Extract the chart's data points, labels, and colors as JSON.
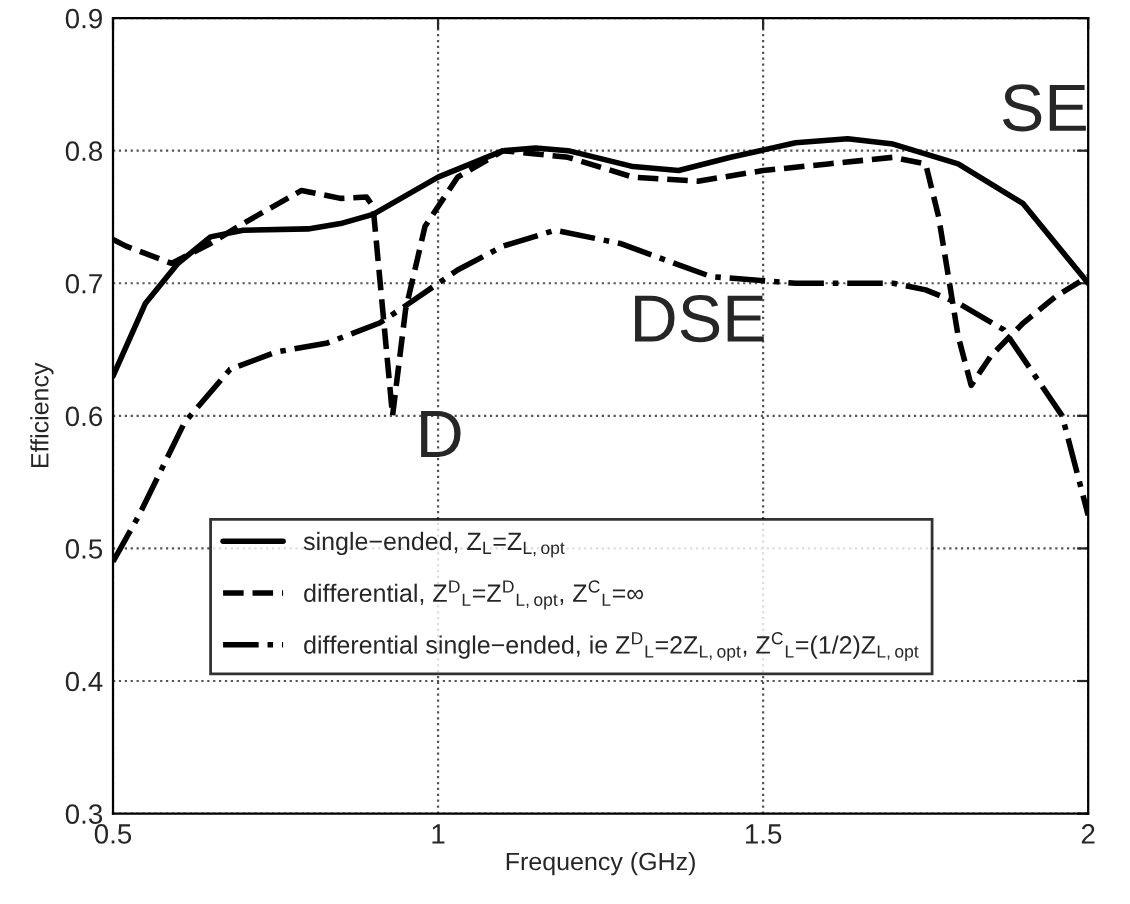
{
  "chart_data": {
    "type": "line",
    "xlabel": "Frequency (GHz)",
    "ylabel": "Efficiency",
    "xlim": [
      0.5,
      2
    ],
    "ylim": [
      0.3,
      0.9
    ],
    "xticks": [
      0.5,
      1,
      1.5,
      2
    ],
    "yticks": [
      0.3,
      0.4,
      0.5,
      0.6,
      0.7,
      0.8,
      0.9
    ],
    "grid": true,
    "legend": "bottom",
    "series": [
      {
        "name": "single−ended, Z$_{L}$=Z$_{L,opt}$",
        "color": "#000000",
        "line_style": "solid",
        "x": [
          0.5,
          0.55,
          0.6,
          0.65,
          0.7,
          0.8,
          0.85,
          0.9,
          1.0,
          1.05,
          1.1,
          1.15,
          1.2,
          1.3,
          1.37,
          1.45,
          1.55,
          1.63,
          1.7,
          1.8,
          1.9,
          2.0
        ],
        "values": [
          0.63,
          0.685,
          0.715,
          0.735,
          0.74,
          0.741,
          0.745,
          0.752,
          0.78,
          0.79,
          0.8,
          0.802,
          0.8,
          0.788,
          0.785,
          0.795,
          0.806,
          0.809,
          0.805,
          0.79,
          0.76,
          0.7
        ]
      },
      {
        "name": "differential, Z$^{D}$$_{L}$=Z$^{D}$$_{L,opt}$, Z$^{C}$$_{L}$=∞",
        "color": "#000000",
        "line_style": "dashed",
        "x": [
          0.5,
          0.52,
          0.59,
          0.65,
          0.7,
          0.79,
          0.85,
          0.89,
          0.9,
          0.93,
          0.95,
          0.98,
          1.03,
          1.1,
          1.2,
          1.3,
          1.4,
          1.5,
          1.6,
          1.7,
          1.75,
          1.77,
          1.8,
          1.82,
          1.85,
          1.9,
          1.95,
          2.0
        ],
        "values": [
          0.733,
          0.728,
          0.715,
          0.73,
          0.745,
          0.77,
          0.764,
          0.765,
          0.758,
          0.6,
          0.68,
          0.743,
          0.78,
          0.8,
          0.795,
          0.78,
          0.777,
          0.785,
          0.79,
          0.795,
          0.79,
          0.75,
          0.66,
          0.623,
          0.645,
          0.67,
          0.69,
          0.705
        ]
      },
      {
        "name": "differential single−ended, ie Z$^{D}$$_{L}$=2Z$_{L,opt}$, Z$^{C}$$_{L}$=(1/2)Z$_{L,opt}$",
        "color": "#000000",
        "line_style": "dashdot",
        "x": [
          0.5,
          0.54,
          0.61,
          0.68,
          0.75,
          0.83,
          0.91,
          0.95,
          1.03,
          1.1,
          1.18,
          1.28,
          1.42,
          1.55,
          1.7,
          1.75,
          1.8,
          1.87,
          1.96,
          2.0
        ],
        "values": [
          0.49,
          0.525,
          0.595,
          0.635,
          0.648,
          0.655,
          0.67,
          0.683,
          0.71,
          0.728,
          0.74,
          0.73,
          0.705,
          0.7,
          0.7,
          0.695,
          0.685,
          0.665,
          0.6,
          0.525
        ]
      }
    ],
    "annotations": [
      "SE",
      "DSE",
      "D"
    ]
  }
}
